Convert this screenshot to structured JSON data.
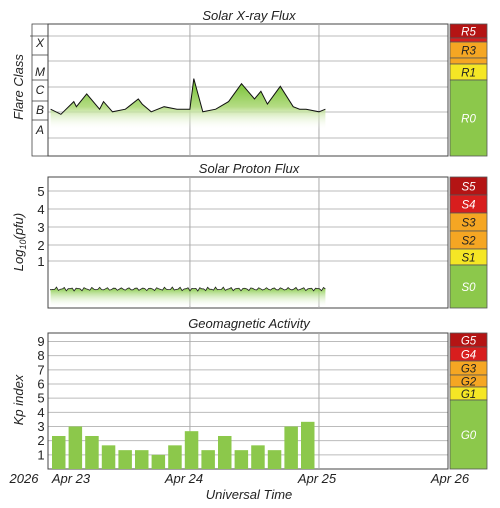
{
  "chart_data": [
    {
      "type": "area",
      "title": "Solar X-ray Flux",
      "ylabel": "Flare Class",
      "y_classes": [
        "A",
        "B",
        "C",
        "M",
        "X"
      ],
      "x_ticks": [
        "Apr 23",
        "Apr 24",
        "Apr 25",
        "Apr 26"
      ],
      "x_range_days": [
        22.9,
        26.0
      ],
      "data_end_day": 25.05,
      "series": [
        {
          "x": [
            22.92,
            23.0,
            23.1,
            23.12,
            23.2,
            23.3,
            23.33,
            23.4,
            23.5,
            23.6,
            23.63,
            23.7,
            23.8,
            23.9,
            24.0,
            24.03,
            24.1,
            24.2,
            24.3,
            24.4,
            24.5,
            24.55,
            24.6,
            24.7,
            24.8,
            24.85,
            24.9,
            25.0,
            25.05
          ],
          "y": [
            2.6,
            2.4,
            2.9,
            2.7,
            3.2,
            2.6,
            2.9,
            2.5,
            2.6,
            3.0,
            2.8,
            2.5,
            2.7,
            2.6,
            2.6,
            3.8,
            2.5,
            2.6,
            2.9,
            3.6,
            3.0,
            3.3,
            2.8,
            3.5,
            2.7,
            2.6,
            2.6,
            2.5,
            2.6
          ]
        }
      ],
      "scale_levels": [
        "R5",
        "R3",
        "R1",
        "R0"
      ]
    },
    {
      "type": "area",
      "title": "Solar Proton Flux",
      "ylabel": "Log10(pfu)",
      "y_ticks": [
        "5",
        "4",
        "3",
        "2",
        "1"
      ],
      "x_ticks": [
        "Apr 23",
        "Apr 24",
        "Apr 25",
        "Apr 26"
      ],
      "series": [
        {
          "x": [
            22.92,
            23.5,
            24.0,
            24.5,
            25.05
          ],
          "y": [
            -0.9,
            -0.9,
            -0.85,
            -0.9,
            -0.85
          ]
        }
      ],
      "scale_levels": [
        "S5",
        "S4",
        "S3",
        "S2",
        "S1",
        "S0"
      ]
    },
    {
      "type": "bar",
      "title": "Geomagnetic Activity",
      "ylabel": "Kp index",
      "y_ticks": [
        "9",
        "8",
        "7",
        "6",
        "5",
        "4",
        "3",
        "2",
        "1"
      ],
      "ylim": [
        0,
        9.6
      ],
      "x_ticks": [
        "Apr 23",
        "Apr 24",
        "Apr 25",
        "Apr 26"
      ],
      "values": [
        2.33,
        3.0,
        2.33,
        1.67,
        1.33,
        1.33,
        1.0,
        1.67,
        2.67,
        1.33,
        2.33,
        1.33,
        1.67,
        1.33,
        3.0,
        3.33
      ],
      "scale_levels": [
        "G5",
        "G4",
        "G3",
        "G2",
        "G1",
        "G0"
      ]
    }
  ],
  "footer": {
    "year": "2026",
    "xlabel": "Universal Time",
    "ticks": [
      "Apr 23",
      "Apr 24",
      "Apr 25",
      "Apr 26"
    ]
  },
  "colors": {
    "bar_green": "#8cc84b",
    "scale_green": "#8cc84b",
    "yellow": "#f5e625",
    "orange": "#f5a623",
    "red_orange": "#ef5a1c",
    "red": "#d81e1e",
    "dark_red": "#b41414"
  }
}
